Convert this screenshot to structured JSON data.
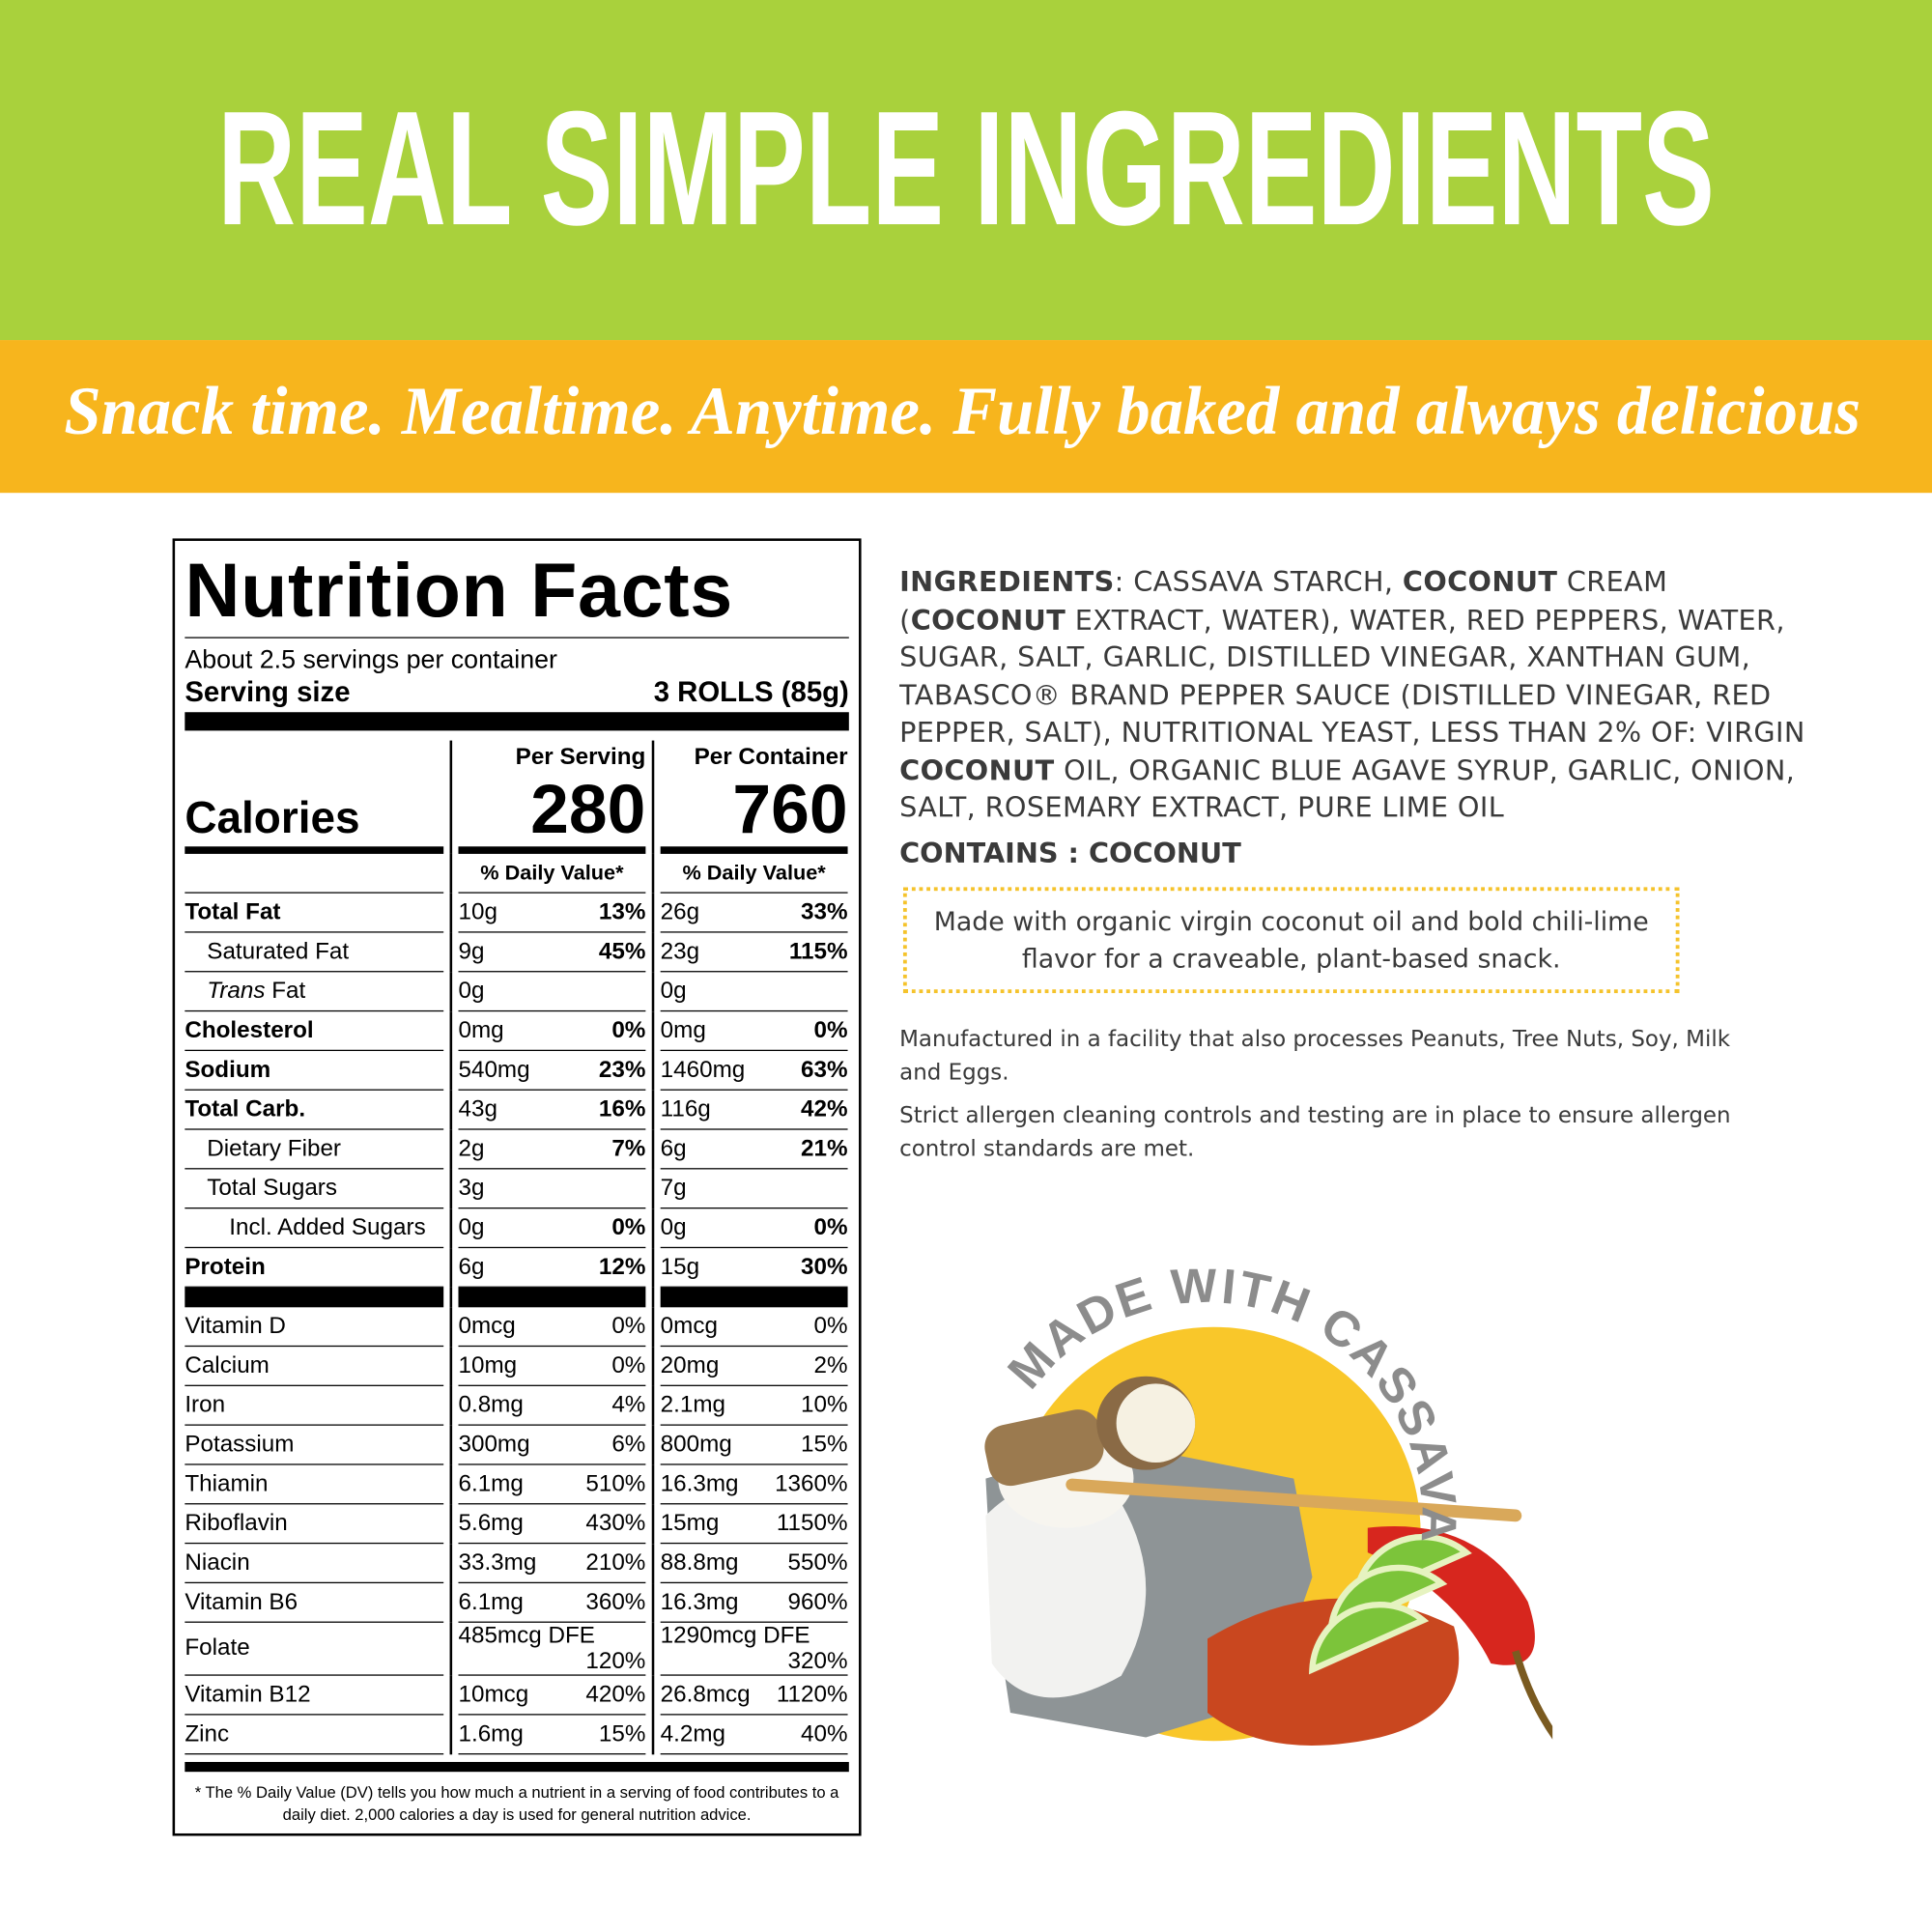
{
  "header": {
    "title": "REAL SIMPLE INGREDIENTS",
    "tagline": "Snack time. Mealtime. Anytime. Fully baked and always delicious"
  },
  "nutrition": {
    "title": "Nutrition Facts",
    "servings_per_container": "About 2.5 servings per container",
    "serving_size_label": "Serving size",
    "serving_size_value": "3 ROLLS (85g)",
    "calories_label": "Calories",
    "columns": [
      "Per Serving",
      "Per Container"
    ],
    "calories": [
      280,
      760
    ],
    "dv_header": "% Daily Value*",
    "nutrients": [
      {
        "label": "Total Fat",
        "bold": true,
        "serving": {
          "amount": "10g",
          "dv": "13%"
        },
        "container": {
          "amount": "26g",
          "dv": "33%"
        }
      },
      {
        "label": "Saturated Fat",
        "indent": 1,
        "serving": {
          "amount": "9g",
          "dv": "45%"
        },
        "container": {
          "amount": "23g",
          "dv": "115%"
        }
      },
      {
        "label_italic": "Trans",
        "label": "Fat",
        "indent": 1,
        "serving": {
          "amount": "0g"
        },
        "container": {
          "amount": "0g"
        }
      },
      {
        "label": "Cholesterol",
        "bold": true,
        "serving": {
          "amount": "0mg",
          "dv": "0%"
        },
        "container": {
          "amount": "0mg",
          "dv": "0%"
        }
      },
      {
        "label": "Sodium",
        "bold": true,
        "serving": {
          "amount": "540mg",
          "dv": "23%"
        },
        "container": {
          "amount": "1460mg",
          "dv": "63%"
        }
      },
      {
        "label": "Total Carb.",
        "bold": true,
        "serving": {
          "amount": "43g",
          "dv": "16%"
        },
        "container": {
          "amount": "116g",
          "dv": "42%"
        }
      },
      {
        "label": "Dietary Fiber",
        "indent": 1,
        "serving": {
          "amount": "2g",
          "dv": "7%"
        },
        "container": {
          "amount": "6g",
          "dv": "21%"
        }
      },
      {
        "label": "Total Sugars",
        "indent": 1,
        "serving": {
          "amount": "3g"
        },
        "container": {
          "amount": "7g"
        }
      },
      {
        "label": "Incl. Added Sugars",
        "indent": 2,
        "serving": {
          "amount": "0g",
          "dv": "0%"
        },
        "container": {
          "amount": "0g",
          "dv": "0%"
        }
      },
      {
        "label": "Protein",
        "bold": true,
        "serving": {
          "amount": "6g",
          "dv": "12%"
        },
        "container": {
          "amount": "15g",
          "dv": "30%"
        }
      }
    ],
    "vitamins": [
      {
        "label": "Vitamin D",
        "serving": {
          "amount": "0mcg",
          "dv": "0%"
        },
        "container": {
          "amount": "0mcg",
          "dv": "0%"
        }
      },
      {
        "label": "Calcium",
        "serving": {
          "amount": "10mg",
          "dv": "0%"
        },
        "container": {
          "amount": "20mg",
          "dv": "2%"
        }
      },
      {
        "label": "Iron",
        "serving": {
          "amount": "0.8mg",
          "dv": "4%"
        },
        "container": {
          "amount": "2.1mg",
          "dv": "10%"
        }
      },
      {
        "label": "Potassium",
        "serving": {
          "amount": "300mg",
          "dv": "6%"
        },
        "container": {
          "amount": "800mg",
          "dv": "15%"
        }
      },
      {
        "label": "Thiamin",
        "serving": {
          "amount": "6.1mg",
          "dv": "510%"
        },
        "container": {
          "amount": "16.3mg",
          "dv": "1360%"
        }
      },
      {
        "label": "Riboflavin",
        "serving": {
          "amount": "5.6mg",
          "dv": "430%"
        },
        "container": {
          "amount": "15mg",
          "dv": "1150%"
        }
      },
      {
        "label": "Niacin",
        "serving": {
          "amount": "33.3mg",
          "dv": "210%"
        },
        "container": {
          "amount": "88.8mg",
          "dv": "550%"
        }
      },
      {
        "label": "Vitamin B6",
        "serving": {
          "amount": "6.1mg",
          "dv": "360%"
        },
        "container": {
          "amount": "16.3mg",
          "dv": "960%"
        }
      },
      {
        "label": "Folate",
        "serving": {
          "amount": "485mcg DFE",
          "dv": "120%"
        },
        "container": {
          "amount": "1290mcg DFE",
          "dv": "320%"
        }
      },
      {
        "label": "Vitamin B12",
        "serving": {
          "amount": "10mcg",
          "dv": "420%"
        },
        "container": {
          "amount": "26.8mcg",
          "dv": "1120%"
        }
      },
      {
        "label": "Zinc",
        "serving": {
          "amount": "1.6mg",
          "dv": "15%"
        },
        "container": {
          "amount": "4.2mg",
          "dv": "40%"
        }
      }
    ],
    "footnote": "* The % Daily Value (DV) tells you how much a nutrient in a serving of food contributes to a daily diet. 2,000 calories a day is used for general nutrition advice."
  },
  "ingredients": {
    "segments": [
      {
        "text": "INGREDIENTS",
        "bold": true
      },
      {
        "text": ": CASSAVA STARCH, "
      },
      {
        "text": "COCONUT",
        "bold": true
      },
      {
        "text": " CREAM ("
      },
      {
        "text": "COCONUT",
        "bold": true
      },
      {
        "text": " EXTRACT, WATER), WATER, RED PEPPERS, WATER, SUGAR, SALT, GARLIC, DISTILLED VINEGAR, XANTHAN GUM, TABASCO® BRAND PEPPER SAUCE (DISTILLED VINEGAR, RED PEPPER, SALT), NUTRITIONAL YEAST, LESS THAN 2% OF: VIRGIN "
      },
      {
        "text": "COCONUT",
        "bold": true
      },
      {
        "text": " OIL, ORGANIC BLUE AGAVE SYRUP, GARLIC, ONION, SALT, ROSEMARY EXTRACT, PURE LIME OIL"
      }
    ],
    "contains": "CONTAINS : COCONUT",
    "callout": "Made with organic virgin coconut oil and bold chili-lime flavor for a craveable, plant-based snack.",
    "facility": [
      "Manufactured in a facility that also processes Peanuts, Tree Nuts, Soy, Milk and Eggs.",
      "Strict allergen cleaning controls and testing are in place to ensure allergen control standards are met."
    ]
  },
  "badge": {
    "text": "MADE WITH CASSAVA"
  }
}
